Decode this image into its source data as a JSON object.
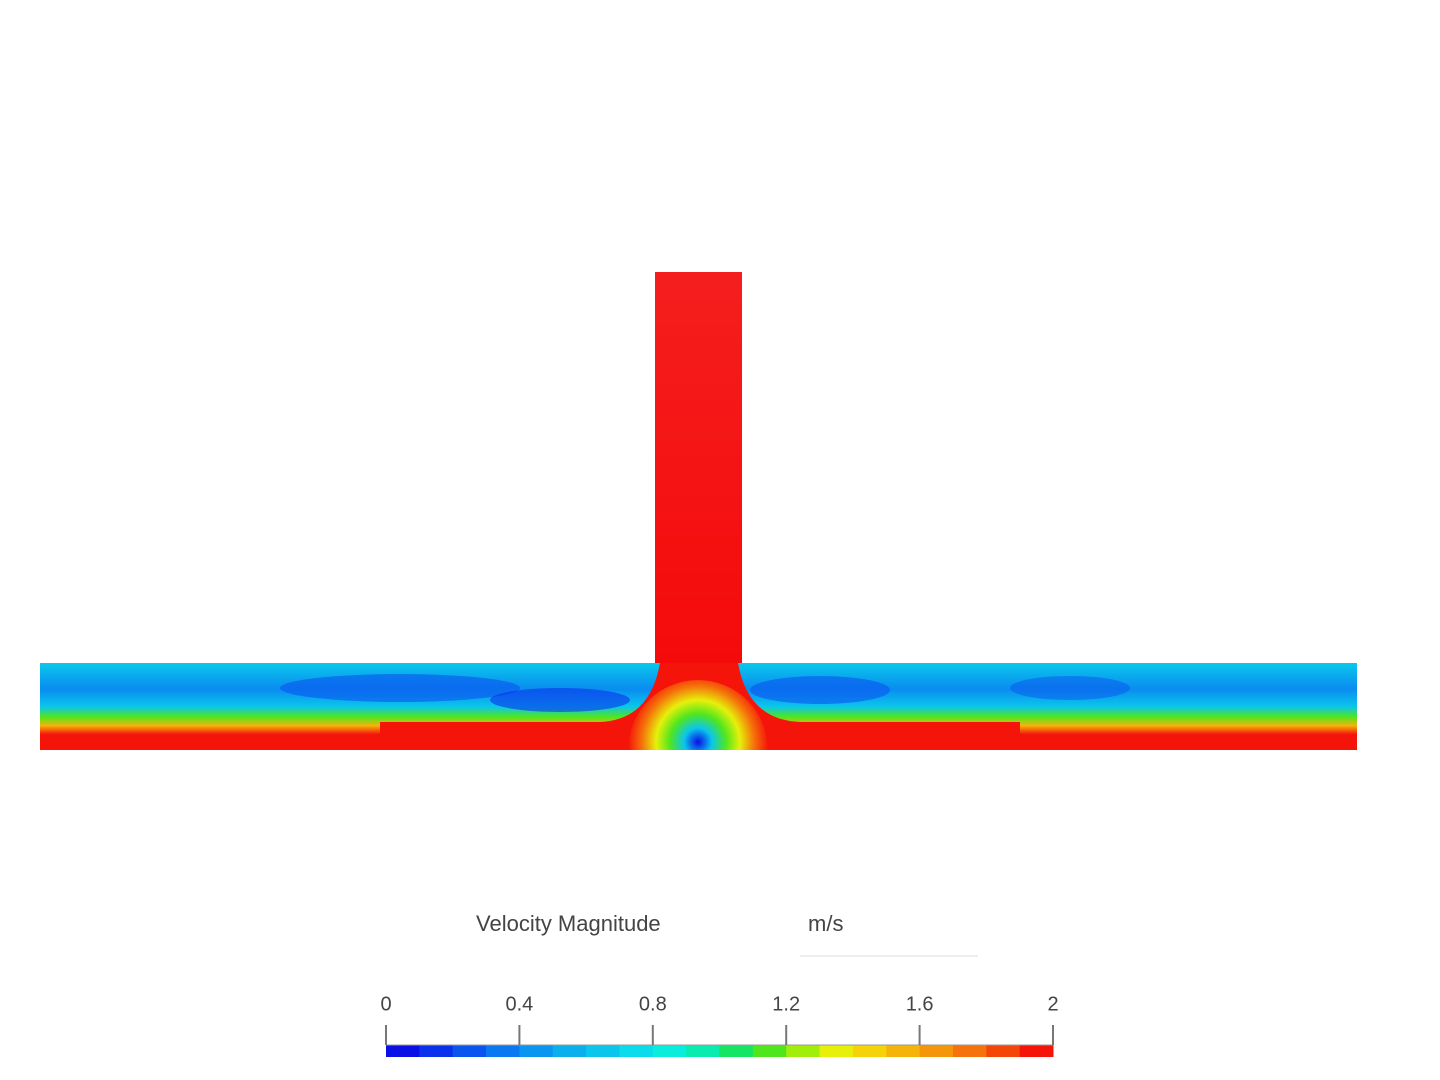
{
  "legend": {
    "title": "Velocity Magnitude",
    "unit": "m/s",
    "range": [
      0,
      2
    ],
    "ticks": [
      0,
      0.4,
      0.8,
      1.2,
      1.6,
      2
    ],
    "colors": [
      "#0a0fe6",
      "#0a32ec",
      "#0a55ee",
      "#0a78f0",
      "#0a96f0",
      "#0ab0ee",
      "#0ac6ec",
      "#0adcec",
      "#0aecdc",
      "#0aebb0",
      "#14e664",
      "#50e61e",
      "#a0ee0a",
      "#e6f00a",
      "#f5d20a",
      "#f5b40a",
      "#f5960a",
      "#f5730a",
      "#f5460a",
      "#f5140a"
    ]
  }
}
